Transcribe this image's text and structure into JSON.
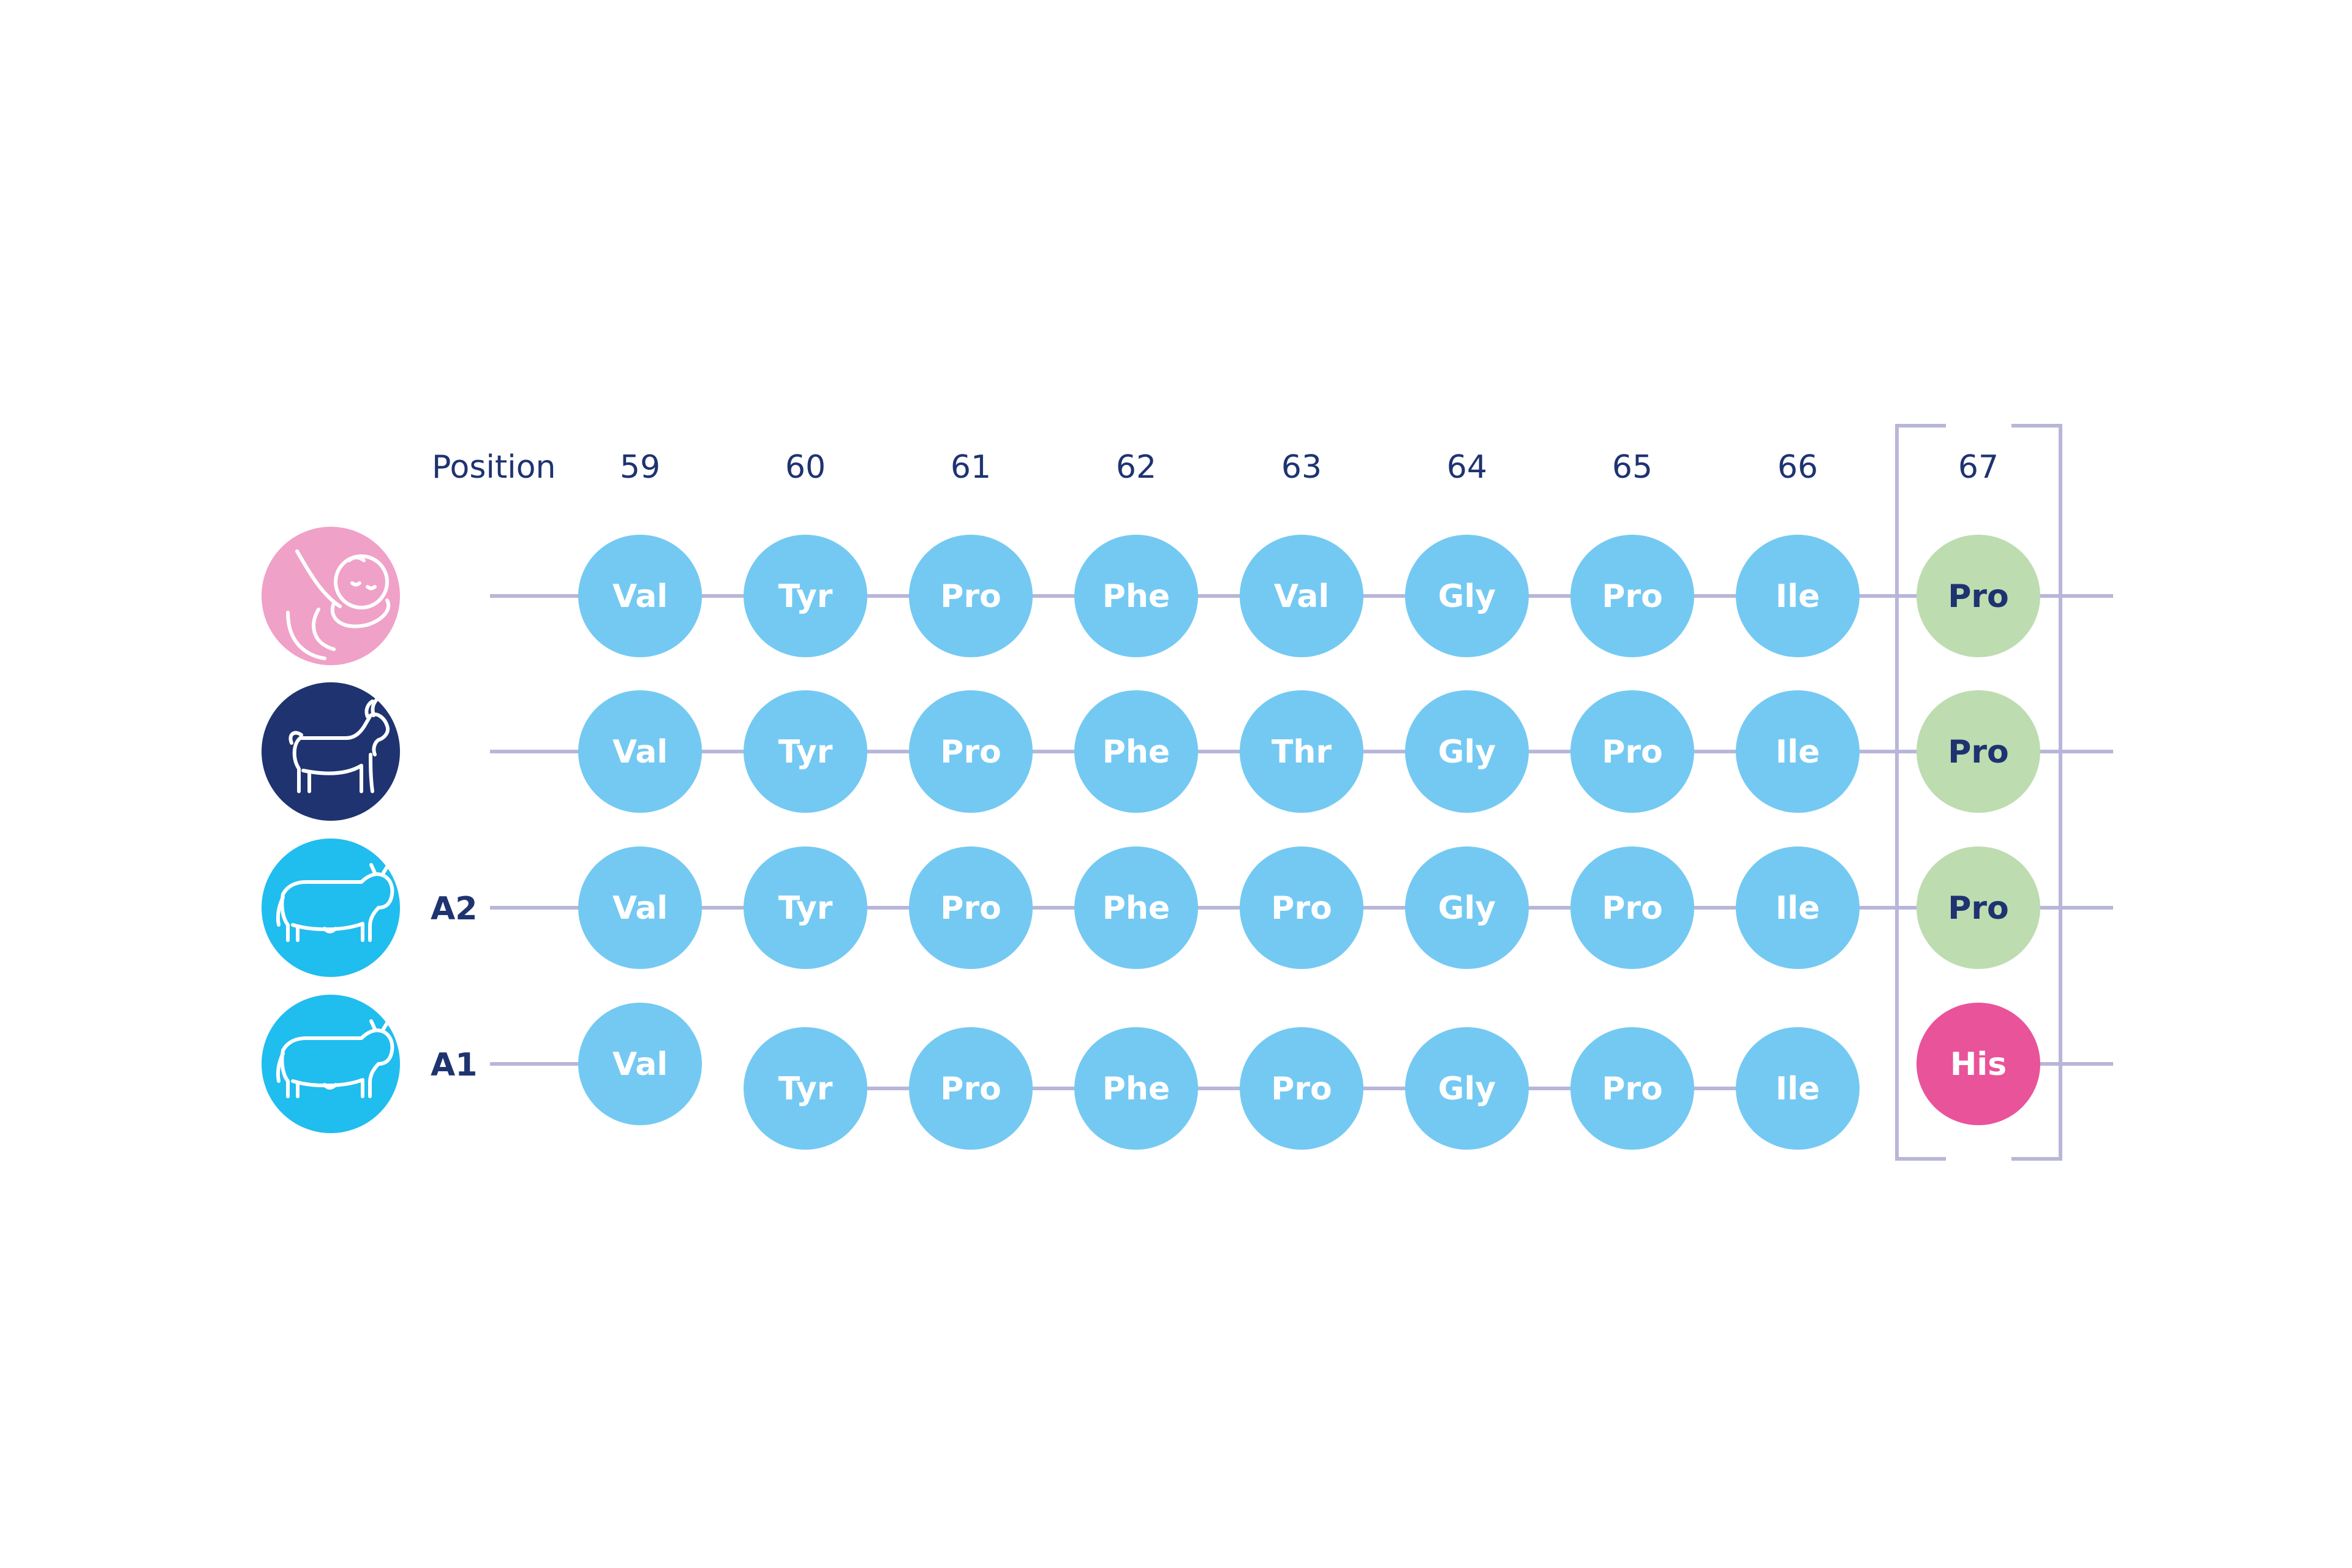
{
  "header": {
    "position_label": "Position"
  },
  "positions": [
    "59",
    "60",
    "61",
    "62",
    "63",
    "64",
    "65",
    "66",
    "67"
  ],
  "colors": {
    "navy": "#1e3370",
    "residue": "#74c9f2",
    "pro_highlight": "#bddcb0",
    "his_highlight": "#e9539a",
    "line": "#b8b6d8",
    "human_icon_bg": "#f0a1c7",
    "goat_icon_bg": "#1e3370",
    "cow_icon_bg": "#20bdef"
  },
  "rows": [
    {
      "icon": "infant-breastfeeding-icon",
      "label": "",
      "residues": [
        "Val",
        "Tyr",
        "Pro",
        "Phe",
        "Val",
        "Gly",
        "Pro",
        "Ile",
        "Pro"
      ],
      "highlight": "pro"
    },
    {
      "icon": "goat-icon",
      "label": "",
      "residues": [
        "Val",
        "Tyr",
        "Pro",
        "Phe",
        "Thr",
        "Gly",
        "Pro",
        "Ile",
        "Pro"
      ],
      "highlight": "pro"
    },
    {
      "icon": "cow-icon",
      "label": "A2",
      "residues": [
        "Val",
        "Tyr",
        "Pro",
        "Phe",
        "Pro",
        "Gly",
        "Pro",
        "Ile",
        "Pro"
      ],
      "highlight": "pro"
    },
    {
      "icon": "cow-icon",
      "label": "A1",
      "residues": [
        "Val",
        "Tyr",
        "Pro",
        "Phe",
        "Pro",
        "Gly",
        "Pro",
        "Ile",
        "His"
      ],
      "highlight": "his",
      "broken_after_first": true
    }
  ]
}
